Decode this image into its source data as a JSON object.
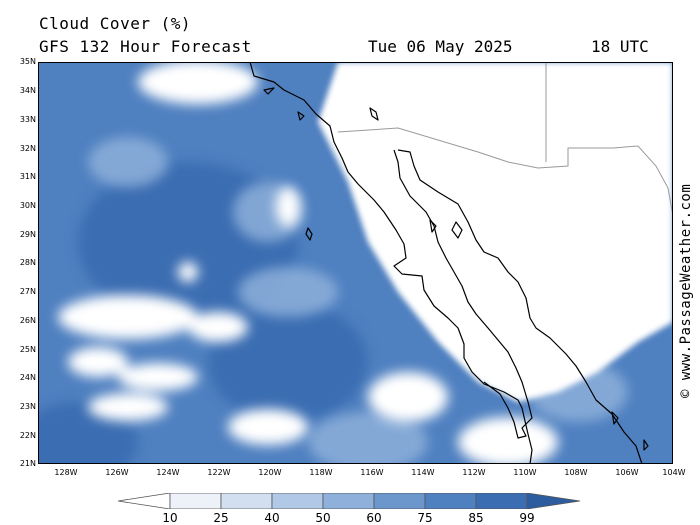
{
  "header": {
    "title": "Cloud Cover (%)",
    "subtitle": "GFS 132 Hour Forecast",
    "date": "Tue 06 May 2025",
    "time": "18 UTC"
  },
  "credit": "© www.PassageWeather.com",
  "lat_labels": [
    "35N",
    "34N",
    "33N",
    "32N",
    "31N",
    "30N",
    "29N",
    "28N",
    "27N",
    "26N",
    "25N",
    "24N",
    "23N",
    "22N",
    "21N"
  ],
  "lon_labels": [
    "128W",
    "126W",
    "124W",
    "122W",
    "120W",
    "118W",
    "116W",
    "114W",
    "112W",
    "110W",
    "108W",
    "106W",
    "104W"
  ],
  "colorbar": {
    "labels": [
      "10",
      "25",
      "40",
      "50",
      "60",
      "75",
      "85",
      "99"
    ],
    "colors": [
      "#ffffff",
      "#edf2f9",
      "#d2dff0",
      "#b1c8e6",
      "#8eb0da",
      "#6b97cd",
      "#4f80c0",
      "#3b6db2",
      "#2d5d9f"
    ]
  },
  "palette": {
    "land": "#ffffff",
    "ocean_cloud": "#4f80c0",
    "border": "#999999",
    "coast": "#000000"
  }
}
